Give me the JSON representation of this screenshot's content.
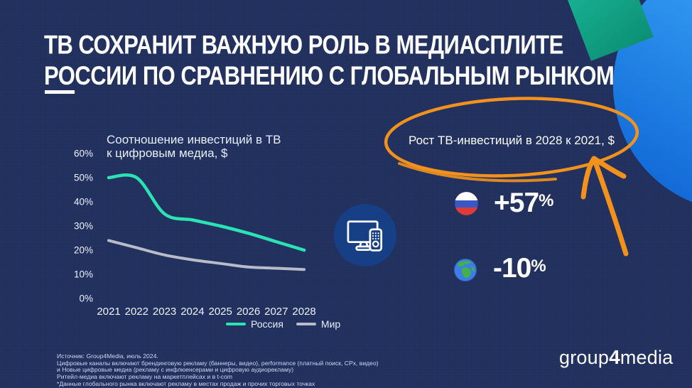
{
  "slide": {
    "title_line1": "ТВ СОХРАНИТ ВАЖНУЮ РОЛЬ В МЕДИАСПЛИТЕ",
    "title_line2": "РОССИИ ПО СРАВНЕНИЮ С ГЛОБАЛЬНЫМ РЫНКОМ"
  },
  "chart_data": {
    "type": "line",
    "title_line1": "Соотношение инвестиций в ТВ",
    "title_line2": "к цифровым медиа, $",
    "categories": [
      "2021",
      "2022",
      "2023",
      "2024",
      "2025",
      "2026",
      "2027",
      "2028"
    ],
    "series": [
      {
        "name": "Россия",
        "color": "#2be3b2",
        "width": 4.5,
        "values": [
          50,
          50,
          35,
          32.5,
          30,
          27,
          23.5,
          20
        ]
      },
      {
        "name": "Мир",
        "color": "#b7bcc8",
        "width": 4,
        "values": [
          24,
          21,
          18,
          16,
          14.5,
          13,
          12.5,
          12
        ]
      }
    ],
    "y_ticks": [
      "0%",
      "10%",
      "20%",
      "30%",
      "40%",
      "50%",
      "60%"
    ],
    "ylim": [
      0,
      60
    ],
    "grid": false,
    "legend_position": "bottom-right"
  },
  "highlight": {
    "circled_label": "Рост ТВ-инвестиций в 2028 к 2021, $",
    "accent_color": "#f2921c",
    "items": [
      {
        "icon": "russia-flag",
        "value": "+57",
        "percent": "%"
      },
      {
        "icon": "globe",
        "value": "-10",
        "percent": "%"
      }
    ]
  },
  "footer": {
    "lines": [
      "Источник: Group4Media, июль 2024.",
      "Цифровые каналы включают брендинговую рекламу (баннеры, видео), performance (платный поиск, CPx, видео)",
      "и Новые цифровые медиа (рекламу с инфлюенсерами и цифровую аудиорекламу)",
      "Ритейл-медиа включают рекламу на маркетплейсах и в t-com",
      "*Данные глобального рынка включают рекламу в местах продаж и прочих торговых точках"
    ]
  },
  "logo": {
    "part1": "group",
    "part2": "4",
    "part3": "media"
  },
  "colors": {
    "background": "#212f5e",
    "accent_orange": "#f2921c",
    "line_russia": "#2be3b2",
    "line_world": "#b7bcc8",
    "decor_blue": "#2f95ef",
    "decor_teal": "#12a287",
    "tv_badge": "#173f85"
  }
}
